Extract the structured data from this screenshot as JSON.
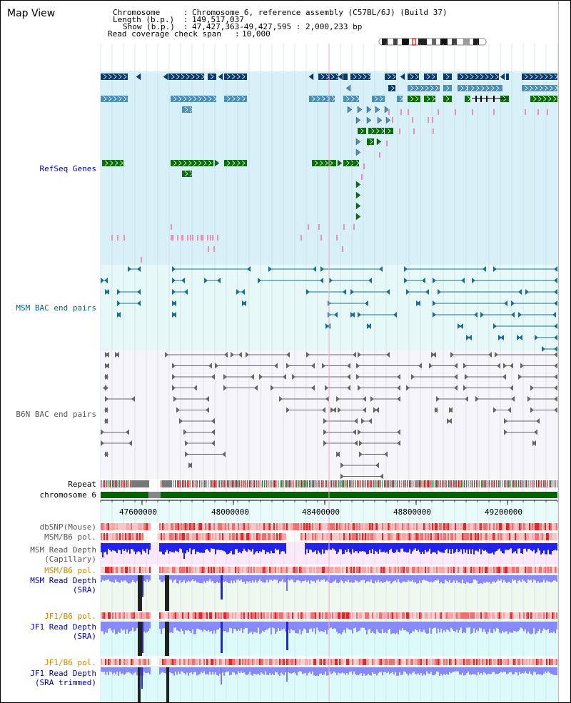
{
  "title": "Map View",
  "info": {
    "chromosome_label": "Chromosome",
    "chromosome_value": "Chromosome 6, reference assembly (C57BL/6J) (Build 37)",
    "length_label": "Length (b.p.)",
    "length_value": "149,517,037",
    "show_label": "Show (b.p.)",
    "show_value": "47,427,363-49,427,595 : 2,000,233 bp",
    "coverage_label": "Read coverage check span",
    "coverage_value": "10,000"
  },
  "tracks": {
    "refseq": "RefSeq Genes",
    "msm_bac": "MSM BAC end pairs",
    "b6n_bac": "B6N BAC end pairs",
    "repeat": "Repeat",
    "chromosome": "chromosome 6",
    "dbsnp": "dbSNP(Mouse)",
    "msm_pol": "MSM/B6 pol.",
    "msm_depth_cap_1": "MSM Read Depth",
    "msm_depth_cap_2": "(Capillary)",
    "msm_pol_2": "MSM/B6 pol.",
    "msm_depth_sra_1": "MSM Read Depth",
    "msm_depth_sra_2": "(SRA)",
    "jf1_pol": "JF1/B6 pol.",
    "jf1_depth_sra_1": "JF1 Read Depth",
    "jf1_depth_sra_2": "(SRA)",
    "jf1_pol_2": "JF1/B6 pol.",
    "jf1_depth_trim_1": "JF1 Read Depth",
    "jf1_depth_trim_2": "(SRA trimmed)"
  },
  "axis": {
    "ticks": [
      "47600000",
      "48000000",
      "48400000",
      "48800000",
      "49200000"
    ]
  },
  "colors": {
    "refseq_bg": "#d8f0f8",
    "msm_bg": "#e6f8f8",
    "b6n_bg": "#f5f5fa",
    "navy_gene": "#0a3b6e",
    "blue_gene": "#4a90b8",
    "green_gene": "#0a6e0a",
    "pink": "#f090b0",
    "teal_bac": "#1a6e8e",
    "gray_bac": "#666666",
    "chrom_green": "#006400",
    "depth_blue": "#2222ee"
  }
}
